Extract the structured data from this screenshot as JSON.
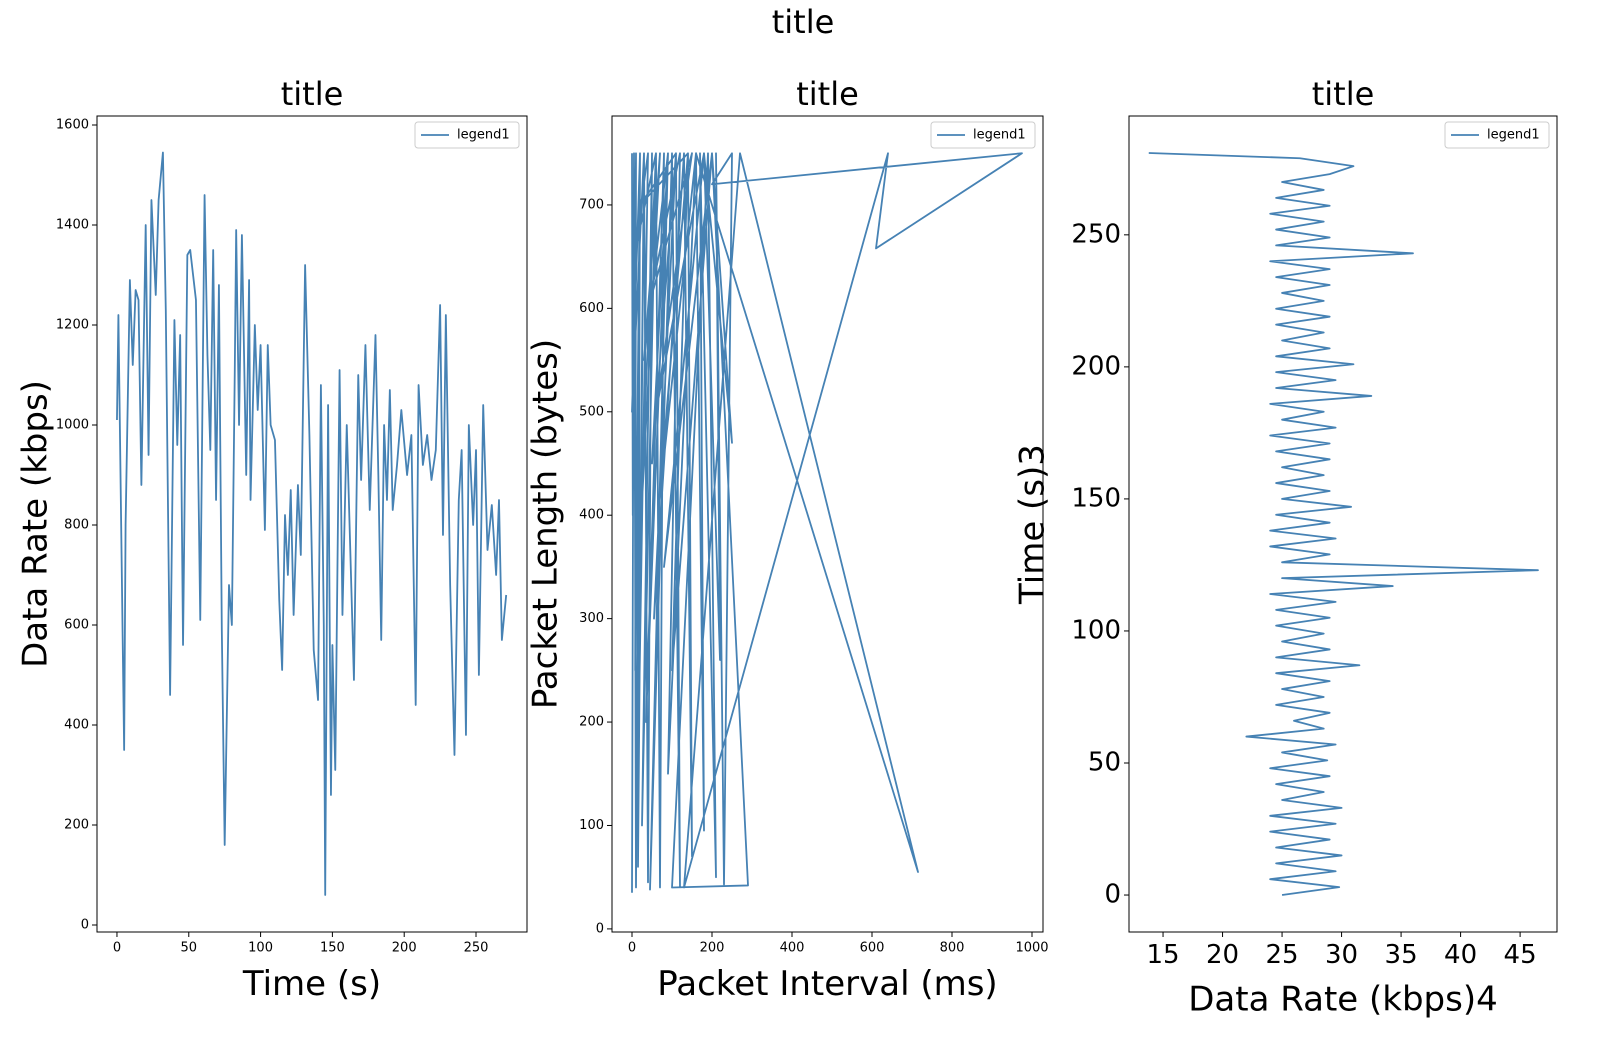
{
  "title": "title",
  "chart_data": [
    {
      "type": "line",
      "title": "title",
      "xlabel": "Time (s)",
      "ylabel": "Data Rate (kbps)",
      "legend": "upper right",
      "xlim": [
        -13.9,
        285.5
      ],
      "ylim": [
        -14,
        1618
      ],
      "xticks": [
        0,
        50,
        100,
        150,
        200,
        250
      ],
      "yticks": [
        0,
        200,
        400,
        600,
        800,
        1000,
        1200,
        1400,
        1600
      ],
      "x": [
        0,
        1,
        5,
        6,
        9,
        11,
        13,
        15,
        17,
        20,
        22,
        24,
        27,
        29,
        32,
        34,
        37,
        40,
        42,
        44,
        46,
        49,
        51,
        53,
        55,
        58,
        61,
        63,
        65,
        67,
        69,
        71,
        73,
        75,
        78,
        80,
        82,
        83,
        85,
        87,
        90,
        92,
        93,
        96,
        98,
        100,
        103,
        105,
        107,
        110,
        113,
        115,
        117,
        119,
        121,
        123,
        126,
        128,
        131,
        134,
        137,
        140,
        142,
        144,
        145,
        147,
        149,
        150,
        152,
        155,
        157,
        160,
        165,
        168,
        170,
        173,
        176,
        180,
        182,
        184,
        186,
        188,
        190,
        192,
        195,
        198,
        202,
        205,
        208,
        210,
        213,
        216,
        219,
        222,
        225,
        227,
        229,
        232,
        235,
        238,
        240,
        243,
        245,
        248,
        250,
        252,
        255,
        258,
        261,
        264,
        266,
        268,
        271
      ],
      "series": [
        {
          "name": "legend1",
          "color": "#4682b4",
          "values": [
            1010,
            1220,
            350,
            800,
            1290,
            1120,
            1270,
            1250,
            880,
            1400,
            940,
            1450,
            1260,
            1450,
            1545,
            1230,
            460,
            1210,
            960,
            1180,
            560,
            1340,
            1350,
            1300,
            1250,
            610,
            1460,
            1140,
            950,
            1350,
            850,
            1280,
            590,
            160,
            680,
            600,
            1100,
            1390,
            1000,
            1380,
            900,
            1290,
            850,
            1200,
            1030,
            1160,
            790,
            1160,
            1000,
            970,
            650,
            510,
            820,
            700,
            870,
            620,
            880,
            740,
            1320,
            980,
            550,
            450,
            1080,
            600,
            60,
            1040,
            260,
            560,
            310,
            1110,
            620,
            1000,
            490,
            1100,
            890,
            1160,
            830,
            1180,
            900,
            570,
            1000,
            850,
            1070,
            830,
            920,
            1030,
            900,
            980,
            440,
            1080,
            920,
            980,
            890,
            950,
            1240,
            780,
            1220,
            680,
            340,
            850,
            950,
            380,
            1000,
            800,
            950,
            500,
            1040,
            750,
            840,
            700,
            850,
            570,
            660
          ]
        }
      ]
    },
    {
      "type": "line",
      "title": "title",
      "xlabel": "Packet Interval (ms)",
      "ylabel": "Packet Length (bytes)",
      "legend": "upper right",
      "xlim": [
        -50,
        1027.5
      ],
      "ylim": [
        -3,
        786
      ],
      "xticks": [
        0,
        200,
        400,
        600,
        800,
        1000
      ],
      "yticks": [
        0,
        100,
        200,
        300,
        400,
        500,
        600,
        700
      ],
      "x": [
        0,
        5,
        10,
        20,
        15,
        30,
        40,
        50,
        25,
        60,
        70,
        80,
        35,
        90,
        45,
        100,
        120,
        110,
        55,
        130,
        150,
        140,
        65,
        160,
        180,
        170,
        210,
        190,
        100,
        290,
        200,
        250,
        180,
        220,
        210,
        230,
        250,
        200,
        975,
        610,
        640,
        130,
        270,
        715,
        160,
        90,
        120,
        40,
        150,
        60,
        180,
        80,
        200,
        100,
        140,
        20,
        110,
        50,
        90,
        30,
        70,
        10,
        60,
        5,
        40,
        15,
        30,
        0,
        20,
        8,
        10,
        2,
        0
      ],
      "series": [
        {
          "name": "legend1",
          "color": "#4682b4",
          "values": [
            35,
            750,
            40,
            750,
            60,
            750,
            45,
            750,
            100,
            750,
            40,
            750,
            200,
            750,
            38,
            750,
            40,
            750,
            300,
            750,
            70,
            750,
            400,
            750,
            95,
            750,
            50,
            750,
            40,
            42,
            750,
            470,
            750,
            260,
            750,
            43,
            750,
            720,
            750,
            658,
            750,
            40,
            750,
            55,
            750,
            150,
            750,
            600,
            750,
            500,
            750,
            350,
            750,
            250,
            750,
            700,
            750,
            450,
            750,
            550,
            750,
            300,
            750,
            650,
            750,
            150,
            750,
            500,
            750,
            250,
            750,
            400,
            750
          ]
        }
      ]
    },
    {
      "type": "line",
      "title": "title",
      "xlabel": "Data Rate (kbps)4",
      "ylabel": "Time (s)3",
      "legend": "upper right",
      "xlim": [
        12.14,
        48.1
      ],
      "ylim": [
        -14,
        295
      ],
      "xticks": [
        15,
        20,
        25,
        30,
        35,
        40,
        45
      ],
      "yticks": [
        0,
        50,
        100,
        150,
        200,
        250
      ],
      "x": [
        25,
        29.8,
        24,
        29.5,
        24.5,
        30,
        24.5,
        29,
        24,
        29.5,
        24,
        30,
        25,
        28.5,
        24.5,
        29,
        24,
        28.8,
        25,
        29.5,
        22,
        28.5,
        26,
        29,
        24.5,
        28.5,
        25,
        29,
        24.5,
        31.5,
        24.5,
        29,
        25,
        28.5,
        24.5,
        29,
        24.5,
        29.5,
        24,
        34.3,
        25,
        46.5,
        25,
        29,
        24,
        29.5,
        24,
        29,
        24.5,
        30.8,
        25,
        29,
        24.5,
        28.5,
        25,
        29,
        24.5,
        29,
        24,
        29.5,
        25,
        28.5,
        24,
        32.5,
        24.5,
        29.5,
        24.5,
        31,
        24.5,
        29,
        25,
        28.5,
        24.5,
        29,
        24.5,
        28.5,
        25,
        29,
        24.5,
        29,
        24,
        36,
        24.5,
        29,
        24.5,
        28.5,
        24,
        29,
        24.5,
        28.5,
        25,
        29,
        31,
        26.5,
        13.8
      ],
      "series": [
        {
          "name": "legend1",
          "color": "#4682b4",
          "values": [
            0,
            3,
            6,
            9,
            12,
            15,
            18,
            21,
            24,
            27,
            30,
            33,
            36,
            39,
            42,
            45,
            48,
            51,
            54,
            57,
            60,
            63,
            66,
            69,
            72,
            75,
            78,
            81,
            84,
            87,
            90,
            93,
            96,
            99,
            102,
            105,
            108,
            111,
            114,
            117,
            120,
            123,
            126,
            129,
            132,
            135,
            138,
            141,
            144,
            147,
            150,
            153,
            156,
            159,
            162,
            165,
            168,
            171,
            174,
            177,
            180,
            183,
            186,
            189,
            192,
            195,
            198,
            201,
            204,
            207,
            210,
            213,
            216,
            219,
            222,
            225,
            228,
            231,
            234,
            237,
            240,
            243,
            246,
            249,
            252,
            255,
            258,
            261,
            264,
            267,
            270,
            273,
            276,
            279,
            281
          ]
        }
      ]
    }
  ]
}
